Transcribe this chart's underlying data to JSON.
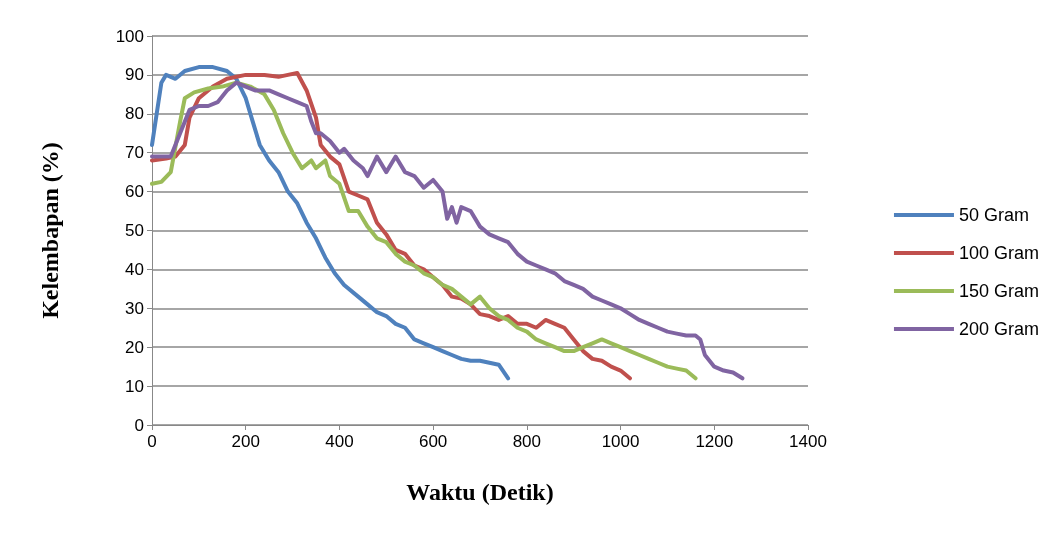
{
  "chart_data": {
    "type": "line",
    "xlabel": "Waktu (Detik)",
    "ylabel": "Kelembapan (%)",
    "xlim": [
      0,
      1400
    ],
    "xticks": [
      0,
      200,
      400,
      600,
      800,
      1000,
      1200,
      1400
    ],
    "ylim": [
      0,
      100
    ],
    "yticks": [
      0,
      10,
      20,
      30,
      40,
      50,
      60,
      70,
      80,
      90,
      100
    ],
    "grid": "y",
    "legend": "right",
    "marker": "none",
    "line_style": "solid",
    "series": [
      {
        "name": "50 Gram",
        "color": "#4f81bd",
        "x": [
          0,
          10,
          20,
          30,
          50,
          70,
          100,
          130,
          160,
          180,
          200,
          215,
          230,
          250,
          270,
          290,
          310,
          330,
          350,
          370,
          390,
          410,
          440,
          460,
          480,
          500,
          520,
          540,
          560,
          580,
          600,
          620,
          640,
          660,
          680,
          700,
          720,
          740,
          760
        ],
        "values": [
          72,
          80,
          88,
          90,
          89,
          91,
          92,
          92,
          91,
          89,
          84,
          78,
          72,
          68,
          65,
          60,
          57,
          52,
          48,
          43,
          39,
          36,
          33,
          31,
          29,
          28,
          26,
          25,
          22,
          21,
          20,
          19,
          18,
          17,
          16.5,
          16.5,
          16,
          15.5,
          12
        ]
      },
      {
        "name": "100 Gram",
        "color": "#c0504d",
        "x": [
          0,
          30,
          50,
          70,
          80,
          100,
          130,
          160,
          200,
          240,
          270,
          290,
          310,
          330,
          350,
          360,
          380,
          400,
          420,
          440,
          460,
          480,
          500,
          520,
          540,
          560,
          580,
          600,
          620,
          640,
          660,
          680,
          700,
          720,
          740,
          760,
          780,
          800,
          820,
          840,
          860,
          880,
          900,
          920,
          940,
          960,
          980,
          1000,
          1020
        ],
        "values": [
          68,
          68.5,
          69,
          72,
          79,
          84,
          87,
          89,
          90,
          90,
          89.5,
          90,
          90.5,
          86,
          79,
          72,
          69,
          67,
          60,
          59,
          58,
          52,
          49,
          45,
          44,
          41,
          40,
          38,
          36,
          33,
          32.5,
          31,
          28.5,
          28,
          27,
          28,
          26,
          26,
          25,
          27,
          26,
          25,
          22,
          19,
          17,
          16.5,
          15,
          14,
          12
        ]
      },
      {
        "name": "150 Gram",
        "color": "#9bbb59",
        "x": [
          0,
          20,
          40,
          60,
          70,
          90,
          120,
          150,
          180,
          210,
          240,
          260,
          280,
          300,
          320,
          340,
          350,
          370,
          380,
          400,
          420,
          440,
          460,
          480,
          500,
          520,
          540,
          560,
          580,
          600,
          620,
          640,
          660,
          680,
          700,
          720,
          740,
          760,
          780,
          800,
          820,
          840,
          860,
          880,
          900,
          920,
          940,
          960,
          980,
          1000,
          1020,
          1040,
          1060,
          1080,
          1100,
          1120,
          1140,
          1160
        ],
        "values": [
          62,
          62.5,
          65,
          78,
          84,
          85.5,
          86.5,
          87,
          88,
          87,
          85,
          81,
          75,
          70,
          66,
          68,
          66,
          68,
          64,
          62,
          55,
          55,
          51,
          48,
          47,
          44,
          42,
          41,
          39,
          38,
          36,
          35,
          33,
          31,
          33,
          30,
          28,
          27,
          25,
          24,
          22,
          21,
          20,
          19,
          19,
          20,
          21,
          22,
          21,
          20,
          19,
          18,
          17,
          16,
          15,
          14.5,
          14,
          12
        ]
      },
      {
        "name": "200 Gram",
        "color": "#8064a2",
        "x": [
          0,
          40,
          60,
          80,
          100,
          120,
          140,
          160,
          180,
          200,
          220,
          250,
          270,
          290,
          310,
          330,
          340,
          350,
          360,
          380,
          400,
          410,
          430,
          450,
          460,
          480,
          500,
          520,
          540,
          560,
          580,
          600,
          620,
          630,
          640,
          650,
          660,
          680,
          700,
          720,
          740,
          760,
          780,
          800,
          820,
          840,
          860,
          880,
          900,
          920,
          940,
          960,
          980,
          1000,
          1020,
          1040,
          1060,
          1080,
          1100,
          1120,
          1140,
          1160,
          1170,
          1180,
          1200,
          1220,
          1240,
          1260
        ],
        "values": [
          69,
          69,
          75,
          81,
          82,
          82,
          83,
          86,
          88,
          87,
          86,
          86,
          85,
          84,
          83,
          82,
          78,
          75,
          75,
          73,
          70,
          71,
          68,
          66,
          64,
          69,
          65,
          69,
          65,
          64,
          61,
          63,
          60,
          53,
          56,
          52,
          56,
          55,
          51,
          49,
          48,
          47,
          44,
          42,
          41,
          40,
          39,
          37,
          36,
          35,
          33,
          32,
          31,
          30,
          28.5,
          27,
          26,
          25,
          24,
          23.5,
          23,
          23,
          22,
          18,
          15,
          14,
          13.5,
          12
        ]
      }
    ]
  }
}
